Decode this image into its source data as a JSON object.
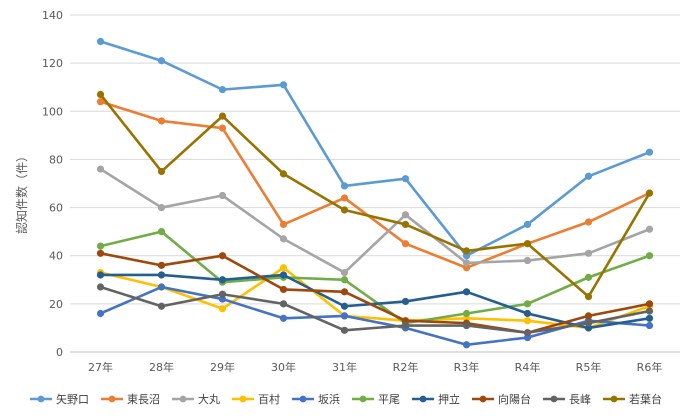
{
  "chart_data": {
    "type": "line",
    "title": "",
    "xlabel": "",
    "ylabel": "認知件数（件）",
    "ylim": [
      0,
      140
    ],
    "yticks": [
      0,
      20,
      40,
      60,
      80,
      100,
      120,
      140
    ],
    "grid": true,
    "legend_position": "bottom",
    "categories": [
      "27年",
      "28年",
      "29年",
      "30年",
      "31年",
      "R2年",
      "R3年",
      "R4年",
      "R5年",
      "R6年"
    ],
    "series": [
      {
        "name": "矢野口",
        "color": "#5B9BD5",
        "values": [
          129,
          121,
          109,
          111,
          69,
          72,
          40,
          53,
          73,
          83
        ]
      },
      {
        "name": "東長沼",
        "color": "#ED7D31",
        "values": [
          104,
          96,
          93,
          53,
          64,
          45,
          35,
          45,
          54,
          66
        ]
      },
      {
        "name": "大丸",
        "color": "#A5A5A5",
        "values": [
          76,
          60,
          65,
          47,
          33,
          57,
          37,
          38,
          41,
          51
        ]
      },
      {
        "name": "百村",
        "color": "#FFC000",
        "values": [
          33,
          27,
          18,
          35,
          15,
          13,
          14,
          13,
          10,
          19
        ]
      },
      {
        "name": "坂浜",
        "color": "#4472C4",
        "values": [
          16,
          27,
          22,
          14,
          15,
          10,
          3,
          6,
          13,
          11
        ]
      },
      {
        "name": "平尾",
        "color": "#70AD47",
        "values": [
          44,
          50,
          29,
          31,
          30,
          12,
          16,
          20,
          31,
          40
        ]
      },
      {
        "name": "押立",
        "color": "#255E91",
        "values": [
          32,
          32,
          30,
          32,
          19,
          21,
          25,
          16,
          10,
          14
        ]
      },
      {
        "name": "向陽台",
        "color": "#9E480E",
        "values": [
          41,
          36,
          40,
          26,
          25,
          13,
          12,
          8,
          15,
          20
        ]
      },
      {
        "name": "長峰",
        "color": "#636363",
        "values": [
          27,
          19,
          24,
          20,
          9,
          11,
          11,
          8,
          12,
          17
        ]
      },
      {
        "name": "若葉台",
        "color": "#997300",
        "values": [
          107,
          75,
          98,
          74,
          59,
          53,
          42,
          45,
          23,
          66
        ]
      }
    ]
  }
}
